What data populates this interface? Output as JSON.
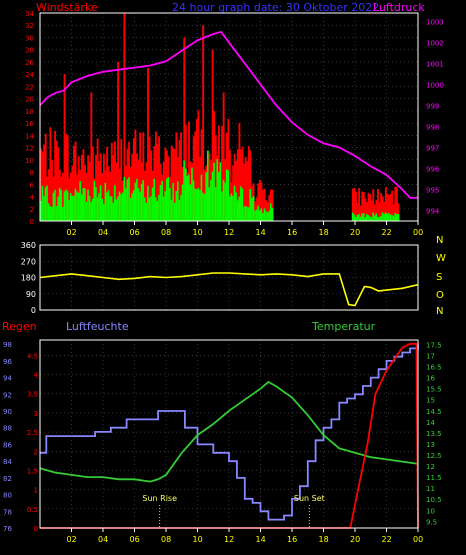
{
  "header": {
    "left_label": "Windstärke",
    "title": "24 hour graph date: 30 Oktober 2022",
    "right_label": "Luftdruck"
  },
  "lower_header": {
    "rain_label": "Regen",
    "humidity_label": "Luftfeuchte",
    "temperature_label": "Temperatur"
  },
  "annotations": {
    "sunrise": "Sun Rise",
    "sunset": "Sun Set"
  },
  "colors": {
    "background": "#000000",
    "axis": "#ffffff",
    "grid": "#555555",
    "wind_label": "#ff0000",
    "pressure_label": "#ff00ff",
    "wind_bars": "#ff0000",
    "wind_avg_bars": "#00ff00",
    "pressure_line": "#ff00ff",
    "direction_line": "#ffff00",
    "humidity_line": "#8888ff",
    "temperature_line": "#33cc33",
    "rain_line": "#ff0000",
    "title": "#3333ff",
    "x_ticks": "#ffff00",
    "direction_ticks": "#ffff00"
  },
  "chart_data": [
    {
      "type": "bar",
      "x_ticks": [
        "02",
        "04",
        "06",
        "08",
        "10",
        "12",
        "14",
        "16",
        "18",
        "20",
        "22",
        "00"
      ],
      "x_range_hours": [
        0,
        24
      ],
      "y_left_ticks": [
        "0",
        "2",
        "4",
        "6",
        "8",
        "10",
        "12",
        "14",
        "16",
        "18",
        "20",
        "22",
        "24",
        "26",
        "28",
        "30",
        "32",
        "34"
      ],
      "y_left_range": [
        0,
        34
      ],
      "y_right_ticks": [
        "994",
        "995",
        "996",
        "997",
        "998",
        "999",
        "1000",
        "1001",
        "1002",
        "1003"
      ],
      "y_right_range": [
        993.5,
        1003.4
      ],
      "grid": true,
      "series": [
        {
          "name": "Windstärke",
          "role": "gust",
          "segments": [
            {
              "from": 0,
              "to": 2,
              "level": 11
            },
            {
              "from": 2,
              "to": 5,
              "level": 10
            },
            {
              "from": 5,
              "to": 9,
              "level": 11
            },
            {
              "from": 9,
              "to": 12,
              "level": 13
            },
            {
              "from": 12,
              "to": 13.6,
              "level": 9
            },
            {
              "from": 13.6,
              "to": 14.8,
              "level": 5
            },
            {
              "from": 14.8,
              "to": 19.8,
              "level": 0
            },
            {
              "from": 19.8,
              "to": 22.8,
              "level": 4
            },
            {
              "from": 22.8,
              "to": 24,
              "level": 0
            }
          ],
          "spikes": [
            [
              1.5,
              24
            ],
            [
              3.2,
              21
            ],
            [
              4.9,
              26
            ],
            [
              5.3,
              34
            ],
            [
              6.8,
              25
            ],
            [
              9.1,
              30
            ],
            [
              10.3,
              32
            ],
            [
              10.9,
              28
            ],
            [
              11.6,
              21
            ],
            [
              12.6,
              16
            ]
          ]
        },
        {
          "name": "Windstärke",
          "role": "average",
          "segments": [
            {
              "from": 0,
              "to": 2,
              "level": 4
            },
            {
              "from": 2,
              "to": 5,
              "level": 5
            },
            {
              "from": 5,
              "to": 9,
              "level": 5
            },
            {
              "from": 9,
              "to": 12,
              "level": 8
            },
            {
              "from": 12,
              "to": 13.6,
              "level": 4
            },
            {
              "from": 13.6,
              "to": 14.8,
              "level": 2
            },
            {
              "from": 14.8,
              "to": 19.8,
              "level": 0
            },
            {
              "from": 19.8,
              "to": 22.8,
              "level": 1
            },
            {
              "from": 22.8,
              "to": 24,
              "level": 0
            }
          ]
        },
        {
          "name": "Luftdruck",
          "type": "line",
          "axis": "right",
          "x": [
            0,
            0.5,
            1,
            1.5,
            2,
            3,
            4,
            5,
            6,
            7,
            8,
            9,
            10,
            11,
            11.5,
            12,
            13,
            14,
            15,
            16,
            17,
            18,
            19,
            20,
            21,
            21.5,
            22,
            23,
            23.5,
            24
          ],
          "y": [
            999,
            999.4,
            999.6,
            999.7,
            1000.1,
            1000.4,
            1000.6,
            1000.7,
            1000.8,
            1000.9,
            1001.1,
            1001.6,
            1002.1,
            1002.4,
            1002.5,
            1002.0,
            1001.0,
            1000.0,
            999.0,
            998.2,
            997.6,
            997.2,
            997.0,
            996.6,
            996.1,
            995.9,
            995.7,
            995.0,
            994.6,
            994.6
          ]
        }
      ]
    },
    {
      "type": "line",
      "x_ticks": [
        "02",
        "04",
        "06",
        "08",
        "10",
        "12",
        "14",
        "16",
        "18",
        "20",
        "22",
        "00"
      ],
      "x_range_hours": [
        0,
        24
      ],
      "y_ticks": [
        "0",
        "90",
        "180",
        "270",
        "360"
      ],
      "y_range": [
        0,
        360
      ],
      "compass_labels": [
        "N",
        "W",
        "S",
        "O",
        "N"
      ],
      "grid": true,
      "series": [
        {
          "name": "Windrichtung",
          "x": [
            0,
            1,
            2,
            3,
            4,
            5,
            6,
            7,
            8,
            9,
            10,
            11,
            12,
            13,
            14,
            15,
            16,
            17,
            18,
            19,
            19.6,
            20,
            20.6,
            21,
            21.5,
            22,
            23,
            24
          ],
          "y": [
            180,
            190,
            200,
            190,
            180,
            170,
            175,
            185,
            180,
            185,
            195,
            205,
            205,
            200,
            195,
            200,
            195,
            185,
            200,
            200,
            30,
            25,
            130,
            125,
            105,
            110,
            120,
            140
          ]
        }
      ]
    },
    {
      "type": "line",
      "x_ticks": [
        "02",
        "04",
        "06",
        "08",
        "10",
        "12",
        "14",
        "16",
        "18",
        "20",
        "22",
        "00"
      ],
      "x_range_hours": [
        0,
        24
      ],
      "y_rain_ticks": [
        "0",
        "0.5",
        "1",
        "1.5",
        "2",
        "2.5",
        "3",
        "3.5",
        "4",
        "4.5"
      ],
      "y_rain_range": [
        0,
        4.9
      ],
      "y_humidity_ticks": [
        "76",
        "78",
        "80",
        "82",
        "84",
        "86",
        "88",
        "90",
        "92",
        "94",
        "96",
        "98"
      ],
      "y_humidity_range": [
        76,
        98.5
      ],
      "y_temperature_ticks": [
        "9.5",
        "10",
        "10.5",
        "11",
        "11.5",
        "12",
        "12.5",
        "13",
        "13.5",
        "14",
        "14.5",
        "15",
        "15.5",
        "16",
        "16.5",
        "17",
        "17.5"
      ],
      "y_temperature_range": [
        9.2,
        17.7
      ],
      "grid": true,
      "series": [
        {
          "name": "Luftfeuchte",
          "x": [
            0,
            0.4,
            1,
            1.8,
            2.5,
            3.5,
            4.5,
            5.5,
            6.5,
            7.5,
            8.5,
            9.2,
            10,
            11,
            12,
            12.5,
            13,
            13.5,
            14,
            14.5,
            15,
            15.5,
            16,
            16.5,
            17,
            17.5,
            18,
            18.5,
            19,
            19.5,
            20,
            20.5,
            21,
            21.5,
            22,
            22.5,
            23,
            23.5,
            24
          ],
          "y": [
            85,
            87,
            87,
            87,
            87,
            87.5,
            88,
            89,
            89,
            90,
            90,
            88,
            86,
            85,
            84,
            82,
            79.5,
            79,
            78,
            77,
            77,
            77.5,
            79.5,
            81,
            84,
            86.5,
            88,
            89,
            91,
            91.5,
            92,
            93,
            94,
            95,
            96,
            96.5,
            97,
            97.5,
            98
          ]
        },
        {
          "name": "Temperatur",
          "x": [
            0,
            1,
            2,
            3,
            4,
            5,
            6,
            7,
            7.5,
            8,
            9,
            10,
            11,
            12,
            13,
            14,
            14.5,
            15,
            16,
            17,
            18,
            19,
            20,
            21,
            22,
            23,
            24
          ],
          "y": [
            11.9,
            11.7,
            11.6,
            11.5,
            11.5,
            11.4,
            11.4,
            11.3,
            11.4,
            11.6,
            12.6,
            13.4,
            13.9,
            14.5,
            15.0,
            15.5,
            15.8,
            15.6,
            15.1,
            14.3,
            13.4,
            12.8,
            12.6,
            12.4,
            12.3,
            12.2,
            12.1
          ]
        },
        {
          "name": "Regen",
          "x": [
            0,
            19,
            19.7,
            20.2,
            20.8,
            21.3,
            22.0,
            22.5,
            23.0,
            23.5,
            23.9,
            24
          ],
          "y": [
            0,
            0,
            0,
            1.0,
            2.2,
            3.5,
            4.1,
            4.4,
            4.7,
            4.8,
            4.8,
            0
          ]
        }
      ],
      "annotations": [
        {
          "label": "Sun Rise",
          "x": 7.6
        },
        {
          "label": "Sun Set",
          "x": 17.1
        }
      ]
    }
  ]
}
